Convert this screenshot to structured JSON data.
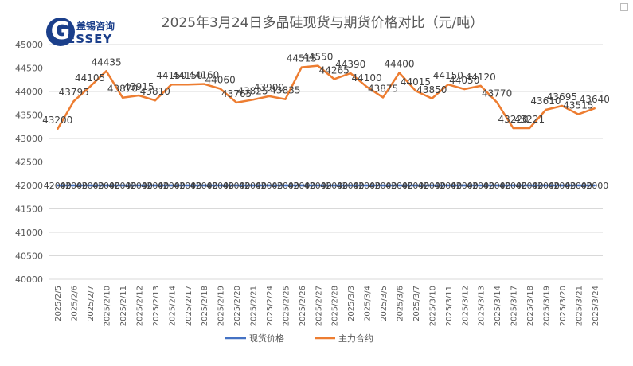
{
  "logo": {
    "cn": "盖锡咨询",
    "en": "ESSEY",
    "g": "G"
  },
  "chart_data": {
    "type": "line",
    "title": "2025年3月24日多晶硅现货与期货价格对比（元/吨）",
    "xlabel": "",
    "ylabel": "",
    "ylim": [
      40000,
      45000
    ],
    "yticks": [
      40000,
      40500,
      41000,
      41500,
      42000,
      42500,
      43000,
      43500,
      44000,
      44500,
      45000
    ],
    "grid": true,
    "legend": "bottom",
    "categories": [
      "2025/2/5",
      "2025/2/6",
      "2025/2/7",
      "2025/2/10",
      "2025/2/11",
      "2025/2/12",
      "2025/2/13",
      "2025/2/14",
      "2025/2/17",
      "2025/2/18",
      "2025/2/19",
      "2025/2/20",
      "2025/2/21",
      "2025/2/24",
      "2025/2/25",
      "2025/2/26",
      "2025/2/27",
      "2025/2/28",
      "2025/3/3",
      "2025/3/4",
      "2025/3/5",
      "2025/3/6",
      "2025/3/7",
      "2025/3/10",
      "2025/3/11",
      "2025/3/12",
      "2025/3/13",
      "2025/3/14",
      "2025/3/17",
      "2025/3/18",
      "2025/3/19",
      "2025/3/20",
      "2025/3/21",
      "2025/3/24"
    ],
    "series": [
      {
        "name": "现货价格",
        "color": "#4472c4",
        "values": [
          42000,
          42000,
          42000,
          42000,
          42000,
          42000,
          42000,
          42000,
          42000,
          42000,
          42000,
          42000,
          42000,
          42000,
          42000,
          42000,
          42000,
          42000,
          42000,
          42000,
          42000,
          42000,
          42000,
          42000,
          42000,
          42000,
          42000,
          42000,
          42000,
          42000,
          42000,
          42000,
          42000,
          42000
        ]
      },
      {
        "name": "主力合约",
        "color": "#ed7d31",
        "values": [
          43200,
          43795,
          44105,
          44435,
          43870,
          43915,
          43810,
          44150,
          44150,
          44160,
          44060,
          43765,
          43825,
          43900,
          43835,
          44515,
          44550,
          44265,
          44390,
          44100,
          43875,
          44400,
          44015,
          43850,
          44150,
          44050,
          44120,
          43770,
          43220,
          43221,
          43610,
          43695,
          43515,
          43640
        ]
      }
    ]
  }
}
